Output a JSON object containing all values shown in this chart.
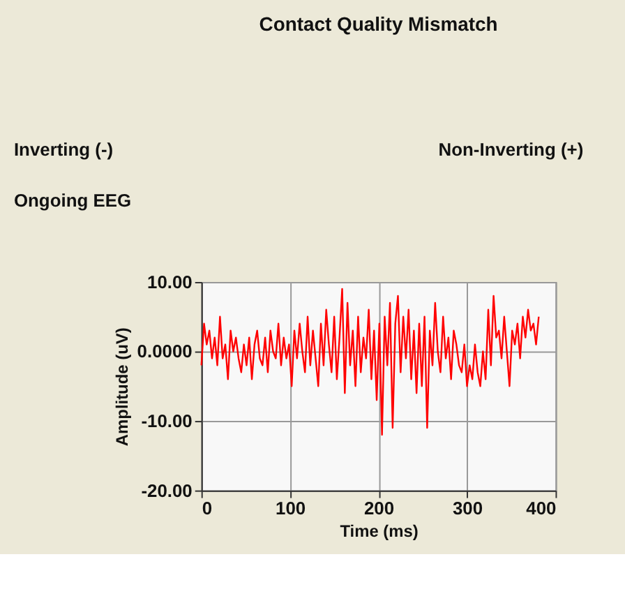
{
  "chart_data": {
    "type": "line",
    "title": "Contact Quality Mismatch",
    "subtitle": "Ongoing EEG",
    "annotations": [
      "Inverting (-)",
      "Non-Inverting (+)"
    ],
    "xlabel": "Time (ms)",
    "ylabel": "Amplitude (uV)",
    "xlim": [
      0,
      400
    ],
    "ylim": [
      -20,
      10
    ],
    "xticks": [
      0,
      100,
      200,
      300,
      400
    ],
    "yticks": [
      {
        "value": 10,
        "label": "10.00"
      },
      {
        "value": 0,
        "label": "0.0000"
      },
      {
        "value": -10,
        "label": "-10.00"
      },
      {
        "value": -20,
        "label": "-20.00"
      }
    ],
    "grid": true,
    "marker": "none",
    "line_style": "solid",
    "series": [
      {
        "color": "#ff0000",
        "x": [
          0,
          3,
          6,
          9,
          12,
          15,
          18,
          21,
          24,
          27,
          30,
          33,
          36,
          39,
          42,
          45,
          48,
          51,
          54,
          57,
          60,
          63,
          66,
          69,
          72,
          75,
          78,
          81,
          84,
          87,
          90,
          93,
          96,
          99,
          102,
          105,
          108,
          111,
          114,
          117,
          120,
          123,
          126,
          129,
          132,
          135,
          138,
          141,
          144,
          147,
          150,
          153,
          156,
          159,
          162,
          165,
          168,
          171,
          174,
          177,
          180,
          183,
          186,
          189,
          192,
          195,
          198,
          201,
          204,
          207,
          210,
          213,
          216,
          219,
          222,
          225,
          228,
          231,
          234,
          237,
          240,
          243,
          246,
          249,
          252,
          255,
          258,
          261,
          264,
          267,
          270,
          273,
          276,
          279,
          282,
          285,
          288,
          291,
          294,
          297,
          300,
          303,
          306,
          309,
          312,
          315,
          318,
          321,
          324,
          327,
          330,
          333,
          336,
          339,
          342,
          345,
          348,
          351,
          354,
          357,
          360,
          363,
          366,
          369,
          372,
          375,
          378,
          381
        ],
        "values": [
          -2,
          4,
          1,
          3,
          -1,
          2,
          -2,
          5,
          -1,
          1,
          -4,
          3,
          0,
          2,
          -1,
          -3,
          1,
          -2,
          2,
          -4,
          1,
          3,
          -1,
          -2,
          2,
          -3,
          3,
          0,
          -1,
          4,
          -2,
          2,
          -1,
          1,
          -5,
          3,
          -1,
          4,
          0,
          -3,
          5,
          -2,
          3,
          -1,
          -5,
          4,
          -2,
          6,
          1,
          -3,
          5,
          -4,
          2,
          9,
          -6,
          7,
          -2,
          3,
          -5,
          5,
          -3,
          2,
          -1,
          6,
          -4,
          3,
          -7,
          4,
          -12,
          5,
          -2,
          7,
          -11,
          4,
          8,
          -3,
          5,
          -1,
          6,
          -4,
          3,
          -6,
          4,
          -5,
          5,
          -11,
          3,
          -2,
          7,
          0,
          -3,
          5,
          -1,
          2,
          -4,
          3,
          1,
          -2,
          -3,
          1,
          -5,
          -2,
          -4,
          1,
          -3,
          -5,
          0,
          -4,
          6,
          -2,
          8,
          2,
          3,
          -1,
          5,
          0,
          -5,
          3,
          1,
          4,
          -1,
          5,
          2,
          6,
          3,
          4,
          1,
          5
        ]
      }
    ]
  }
}
